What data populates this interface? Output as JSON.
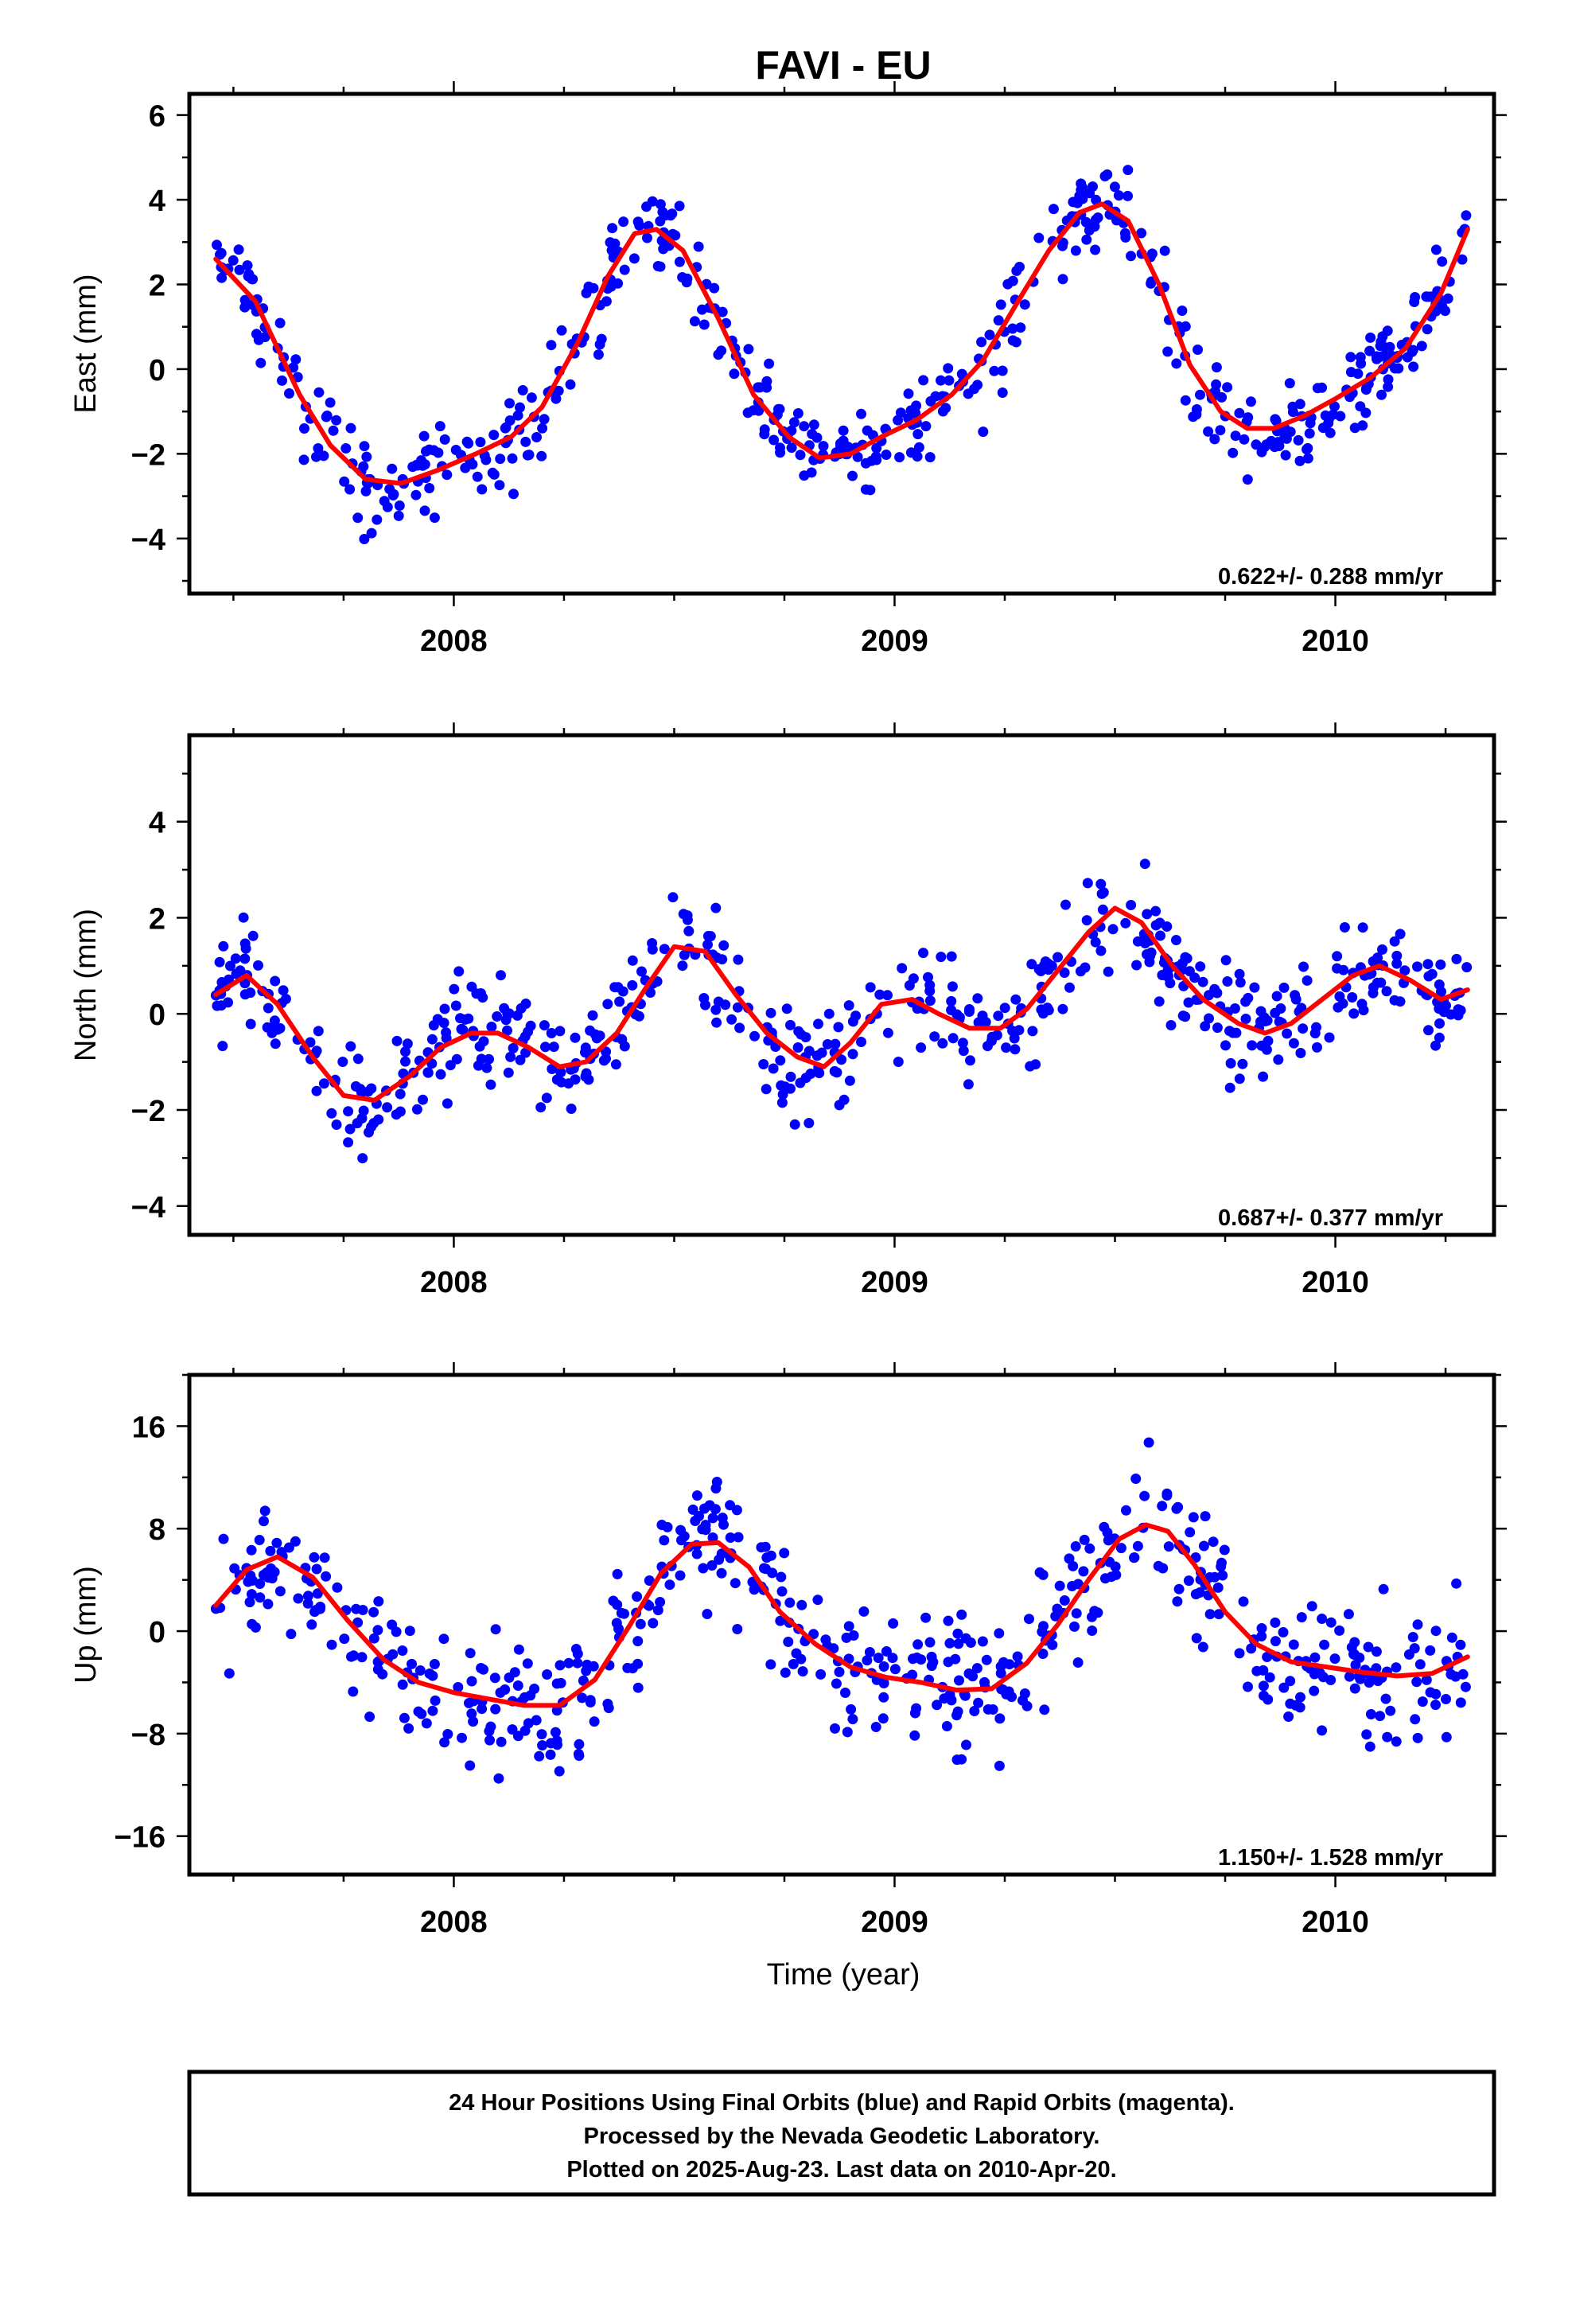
{
  "title": "FAVI - EU",
  "xlabel": "Time (year)",
  "x_tick_labels": [
    "2008",
    "2009",
    "2010"
  ],
  "footer": [
    "24 Hour Positions Using Final Orbits (blue) and Rapid Orbits (magenta).",
    "Processed by the Nevada Geodetic Laboratory.",
    "Plotted on 2025-Aug-23. Last data on 2010-Apr-20."
  ],
  "colors": {
    "points": "#0000ff",
    "fit": "#ff0000",
    "frame": "#000000"
  },
  "chart_data": [
    {
      "type": "scatter",
      "ylabel": "East (mm)",
      "rate_text": "0.622+/- 0.288 mm/yr",
      "xlim": [
        2007.4,
        2010.36
      ],
      "ylim": [
        -5.3,
        6.5
      ],
      "xticks": [
        2008,
        2009,
        2010
      ],
      "yticks": [
        -4,
        -2,
        0,
        2,
        4,
        6
      ],
      "fit_series": {
        "name": "fit",
        "x": [
          2007.46,
          2007.55,
          2007.65,
          2007.72,
          2007.8,
          2007.88,
          2007.96,
          2008.05,
          2008.13,
          2008.2,
          2008.28,
          2008.35,
          2008.41,
          2008.46,
          2008.52,
          2008.6,
          2008.68,
          2008.76,
          2008.83,
          2008.9,
          2008.97,
          2009.05,
          2009.13,
          2009.2,
          2009.28,
          2009.35,
          2009.42,
          2009.47,
          2009.53,
          2009.6,
          2009.67,
          2009.74,
          2009.8,
          2009.86,
          2009.93,
          2010.0,
          2010.08,
          2010.16,
          2010.24,
          2010.3
        ],
        "y": [
          2.6,
          1.6,
          -0.6,
          -1.8,
          -2.6,
          -2.7,
          -2.4,
          -2.0,
          -1.6,
          -0.9,
          0.6,
          2.2,
          3.2,
          3.3,
          2.8,
          1.2,
          -0.6,
          -1.6,
          -2.1,
          -2.0,
          -1.6,
          -1.2,
          -0.6,
          0.2,
          1.6,
          2.8,
          3.7,
          3.9,
          3.5,
          2.0,
          0.1,
          -1.0,
          -1.4,
          -1.4,
          -1.1,
          -0.7,
          -0.2,
          0.5,
          1.8,
          3.3
        ]
      },
      "scatter_series": {
        "name": "positions",
        "x_range": [
          2007.46,
          2010.3
        ],
        "n": 540,
        "spread": 0.9
      }
    },
    {
      "type": "scatter",
      "ylabel": "North (mm)",
      "rate_text": "0.687+/- 0.377 mm/yr",
      "xlim": [
        2007.4,
        2010.36
      ],
      "ylim": [
        -4.6,
        5.8
      ],
      "xticks": [
        2008,
        2009,
        2010
      ],
      "yticks": [
        -4,
        -2,
        0,
        2,
        4
      ],
      "fit_series": {
        "name": "fit",
        "x": [
          2007.46,
          2007.53,
          2007.6,
          2007.68,
          2007.75,
          2007.82,
          2007.9,
          2007.97,
          2008.04,
          2008.1,
          2008.17,
          2008.24,
          2008.3,
          2008.37,
          2008.44,
          2008.5,
          2008.57,
          2008.64,
          2008.71,
          2008.78,
          2008.84,
          2008.9,
          2008.97,
          2009.04,
          2009.1,
          2009.17,
          2009.24,
          2009.3,
          2009.37,
          2009.44,
          2009.5,
          2009.56,
          2009.63,
          2009.7,
          2009.78,
          2009.84,
          2009.9,
          2009.97,
          2010.04,
          2010.1,
          2010.17,
          2010.24,
          2010.3
        ],
        "y": [
          0.4,
          0.8,
          0.2,
          -0.9,
          -1.7,
          -1.8,
          -1.3,
          -0.7,
          -0.4,
          -0.4,
          -0.7,
          -1.1,
          -1.0,
          -0.4,
          0.6,
          1.4,
          1.3,
          0.4,
          -0.4,
          -0.9,
          -1.1,
          -0.6,
          0.2,
          0.3,
          0.0,
          -0.3,
          -0.3,
          0.1,
          0.9,
          1.7,
          2.2,
          1.9,
          1.0,
          0.3,
          -0.2,
          -0.4,
          -0.2,
          0.3,
          0.8,
          1.0,
          0.7,
          0.3,
          0.5
        ]
      },
      "scatter_series": {
        "name": "positions",
        "x_range": [
          2007.46,
          2010.3
        ],
        "n": 560,
        "spread": 0.95
      }
    },
    {
      "type": "scatter",
      "ylabel": "Up (mm)",
      "rate_text": "1.150+/- 1.528 mm/yr",
      "xlim": [
        2007.4,
        2010.36
      ],
      "ylim": [
        -19,
        20
      ],
      "xticks": [
        2008,
        2009,
        2010
      ],
      "yticks": [
        -16,
        -8,
        0,
        8,
        16
      ],
      "fit_series": {
        "name": "fit",
        "x": [
          2007.46,
          2007.53,
          2007.6,
          2007.68,
          2007.76,
          2007.84,
          2007.92,
          2008.0,
          2008.08,
          2008.16,
          2008.24,
          2008.32,
          2008.4,
          2008.47,
          2008.54,
          2008.6,
          2008.67,
          2008.74,
          2008.82,
          2008.9,
          2008.98,
          2009.06,
          2009.14,
          2009.22,
          2009.3,
          2009.37,
          2009.44,
          2009.51,
          2009.57,
          2009.62,
          2009.68,
          2009.75,
          2009.82,
          2009.9,
          2009.98,
          2010.06,
          2010.14,
          2010.22,
          2010.3
        ],
        "y": [
          2.0,
          4.8,
          5.8,
          4.2,
          0.8,
          -2.2,
          -4.0,
          -4.8,
          -5.3,
          -5.8,
          -5.8,
          -3.8,
          0.5,
          4.5,
          6.8,
          6.9,
          5.0,
          1.5,
          -1.0,
          -2.8,
          -3.6,
          -4.0,
          -4.6,
          -4.5,
          -2.5,
          0.5,
          4.0,
          7.2,
          8.3,
          7.8,
          5.2,
          1.5,
          -1.0,
          -2.4,
          -2.8,
          -3.2,
          -3.5,
          -3.3,
          -2.0
        ]
      },
      "scatter_series": {
        "name": "positions",
        "x_range": [
          2007.46,
          2010.3
        ],
        "n": 560,
        "spread": 4.3
      }
    }
  ]
}
